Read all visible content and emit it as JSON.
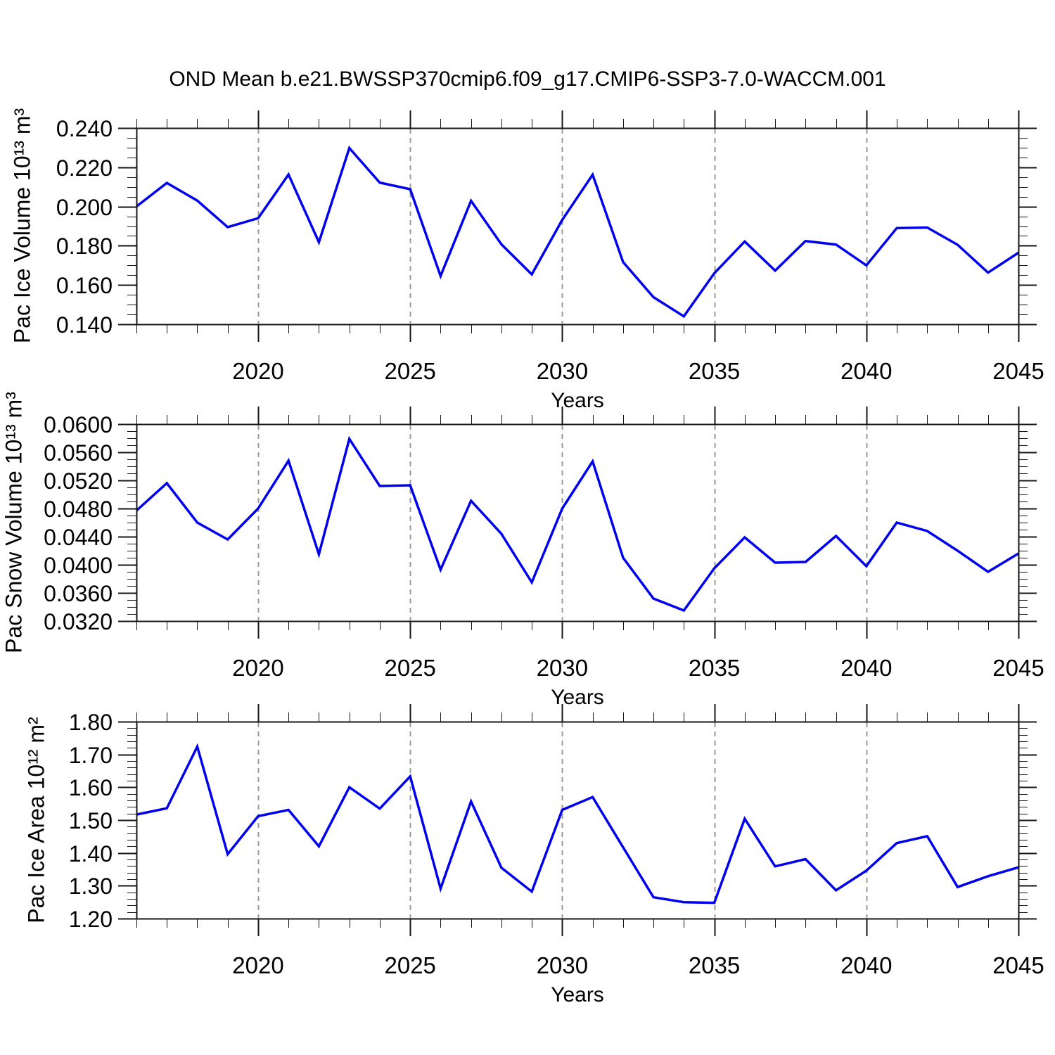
{
  "title": "OND Mean b.e21.BWSSP370cmip6.f09_g17.CMIP6-SSP3-7.0-WACCM.001",
  "colors": {
    "line": "#0000EE",
    "axis": "#161616",
    "grid": "#9A9A9A",
    "text": "#000000",
    "background": "#FFFFFF"
  },
  "years": [
    2016,
    2017,
    2018,
    2019,
    2020,
    2021,
    2022,
    2023,
    2024,
    2025,
    2026,
    2027,
    2028,
    2029,
    2030,
    2031,
    2032,
    2033,
    2034,
    2035,
    2036,
    2037,
    2038,
    2039,
    2040,
    2041,
    2042,
    2043,
    2044,
    2045
  ],
  "chart_data": [
    {
      "type": "line",
      "name": "pac-ice-volume",
      "ylabel": "Pac Ice Volume 10¹³ m³",
      "xlabel": "Years",
      "xlim": [
        2016,
        2045
      ],
      "ylim": [
        0.14,
        0.24
      ],
      "grid": "dashed-vertical-major",
      "legend": "none",
      "values": [
        0.2,
        0.212,
        0.203,
        0.1895,
        0.194,
        0.2163,
        0.1818,
        0.2298,
        0.2122,
        0.2088,
        0.1646,
        0.2029,
        0.1807,
        0.1654,
        0.1932,
        0.2162,
        0.1717,
        0.1538,
        0.144,
        0.166,
        0.1822,
        0.1673,
        0.1824,
        0.1806,
        0.17,
        0.189,
        0.1893,
        0.1805,
        0.1663,
        0.1764
      ],
      "y_tick_values": [
        0.24,
        0.22,
        0.2,
        0.18,
        0.16,
        0.14
      ],
      "y_tick_labels": [
        "0.240",
        "0.220",
        "0.200",
        "0.180",
        "0.160",
        "0.140"
      ],
      "y_minor_step": 0.005,
      "x_tick_values": [
        2020,
        2025,
        2030,
        2035,
        2040,
        2045
      ],
      "x_tick_labels": [
        "2020",
        "2025",
        "2030",
        "2035",
        "2040",
        "2045"
      ],
      "x_minor_step": 1,
      "gridline_years": [
        2020,
        2025,
        2030,
        2035,
        2040
      ]
    },
    {
      "type": "line",
      "name": "pac-snow-volume",
      "ylabel": "Pac Snow Volume 10¹³ m³",
      "xlabel": "Years",
      "xlim": [
        2016,
        2045
      ],
      "ylim": [
        0.032,
        0.06
      ],
      "grid": "dashed-vertical-major",
      "legend": "none",
      "values": [
        0.0477,
        0.0516,
        0.046,
        0.0436,
        0.048,
        0.0548,
        0.0415,
        0.0579,
        0.0512,
        0.0513,
        0.0393,
        0.0491,
        0.0444,
        0.0375,
        0.048,
        0.0547,
        0.041,
        0.0352,
        0.0335,
        0.0395,
        0.0439,
        0.0403,
        0.0404,
        0.0441,
        0.0398,
        0.046,
        0.0448,
        0.042,
        0.039,
        0.0416
      ],
      "y_tick_values": [
        0.06,
        0.056,
        0.052,
        0.048,
        0.044,
        0.04,
        0.036,
        0.032
      ],
      "y_tick_labels": [
        "0.0600",
        "0.0560",
        "0.0520",
        "0.0480",
        "0.0440",
        "0.0400",
        "0.0360",
        "0.0320"
      ],
      "y_minor_step": 0.001,
      "x_tick_values": [
        2020,
        2025,
        2030,
        2035,
        2040,
        2045
      ],
      "x_tick_labels": [
        "2020",
        "2025",
        "2030",
        "2035",
        "2040",
        "2045"
      ],
      "x_minor_step": 1,
      "gridline_years": [
        2020,
        2025,
        2030,
        2035,
        2040
      ]
    },
    {
      "type": "line",
      "name": "pac-ice-area",
      "ylabel": "Pac Ice Area 10¹² m²",
      "xlabel": "Years",
      "xlim": [
        2016,
        2045
      ],
      "ylim": [
        1.2,
        1.8
      ],
      "grid": "dashed-vertical-major",
      "legend": "none",
      "values": [
        1.517,
        1.536,
        1.724,
        1.396,
        1.512,
        1.531,
        1.42,
        1.6,
        1.535,
        1.633,
        1.291,
        1.557,
        1.355,
        1.282,
        1.531,
        1.57,
        1.417,
        1.265,
        1.25,
        1.248,
        1.504,
        1.359,
        1.381,
        1.286,
        1.346,
        1.43,
        1.451,
        1.296,
        1.329,
        1.356
      ],
      "y_tick_values": [
        1.8,
        1.7,
        1.6,
        1.5,
        1.4,
        1.3,
        1.2
      ],
      "y_tick_labels": [
        "1.80",
        "1.70",
        "1.60",
        "1.50",
        "1.40",
        "1.30",
        "1.20"
      ],
      "y_minor_step": 0.02,
      "x_tick_values": [
        2020,
        2025,
        2030,
        2035,
        2040,
        2045
      ],
      "x_tick_labels": [
        "2020",
        "2025",
        "2030",
        "2035",
        "2040",
        "2045"
      ],
      "x_minor_step": 1,
      "gridline_years": [
        2020,
        2025,
        2030,
        2035,
        2040
      ]
    }
  ]
}
